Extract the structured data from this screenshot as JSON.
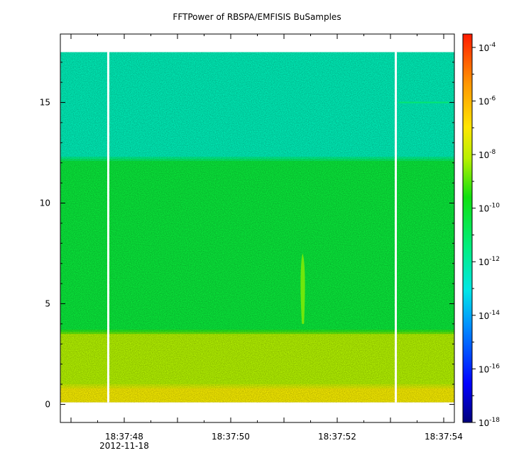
{
  "chart_data": {
    "type": "heatmap",
    "title": "FFTPower of RBSPA/EMFISIS  BuSamples",
    "xlabel": "",
    "ylabel": "",
    "x_ticks": [
      {
        "label": "18:37:48",
        "sub": "2012-11-18",
        "t": 48
      },
      {
        "label": "18:37:50",
        "sub": "",
        "t": 50
      },
      {
        "label": "18:37:52",
        "sub": "",
        "t": 52
      },
      {
        "label": "18:37:54",
        "sub": "",
        "t": 54
      }
    ],
    "x_range_seconds": [
      46.8,
      54.2
    ],
    "y_ticks": [
      0,
      5,
      10,
      15
    ],
    "ylim": [
      -0.9,
      18.4
    ],
    "data_y_range": [
      0.1,
      17.5
    ],
    "colorbar": {
      "scale": "log",
      "range_exp": [
        -18,
        -3.5
      ],
      "tick_exponents": [
        -18,
        -16,
        -14,
        -12,
        -10,
        -8,
        -6,
        -4
      ],
      "tick_base": "10"
    },
    "bands": [
      {
        "y_from": 12.2,
        "y_to": 17.5,
        "log_power": -12.3
      },
      {
        "y_from": 3.6,
        "y_to": 12.2,
        "log_power": -10.3
      },
      {
        "y_from": 0.9,
        "y_to": 3.6,
        "log_power": -8.2
      },
      {
        "y_from": 0.1,
        "y_to": 0.9,
        "log_power": -7.2
      }
    ],
    "gaps_seconds": [
      47.7,
      53.1
    ],
    "features": [
      {
        "name": "",
        "t": 51.35,
        "y_from": 4.0,
        "y_to": 7.5,
        "log_power": -8.6
      },
      {
        "name": "",
        "t_from": 53.15,
        "t_to": 54.1,
        "y": 15.0,
        "log_power": -11.0
      }
    ],
    "colors": {
      "background": "#ffffff",
      "frame": "#000000"
    }
  }
}
